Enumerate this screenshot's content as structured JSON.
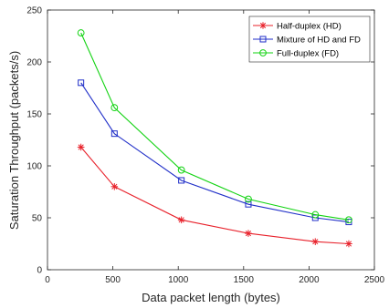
{
  "chart_data": {
    "type": "line",
    "title": "",
    "xlabel": "Data packet length (bytes)",
    "ylabel": "Saturation Throughput (packets/s)",
    "xlim": [
      0,
      2500
    ],
    "ylim": [
      0,
      250
    ],
    "xticks": [
      0,
      500,
      1000,
      1500,
      2000,
      2500
    ],
    "yticks": [
      0,
      50,
      100,
      150,
      200,
      250
    ],
    "grid": false,
    "legend_position": "top-right",
    "x": [
      256,
      512,
      1024,
      1536,
      2048,
      2304
    ],
    "series": [
      {
        "name": "Half-duplex (HD)",
        "values": [
          118,
          80,
          48,
          35,
          27,
          25
        ],
        "color": "#e8202a",
        "marker": "asterisk"
      },
      {
        "name": "Mixture of HD and FD",
        "values": [
          180,
          131,
          86,
          63,
          50,
          46
        ],
        "color": "#1f2ec8",
        "marker": "square"
      },
      {
        "name": "Full-duplex (FD)",
        "values": [
          228,
          156,
          96,
          68,
          53,
          48
        ],
        "color": "#12d312",
        "marker": "circle"
      }
    ]
  }
}
